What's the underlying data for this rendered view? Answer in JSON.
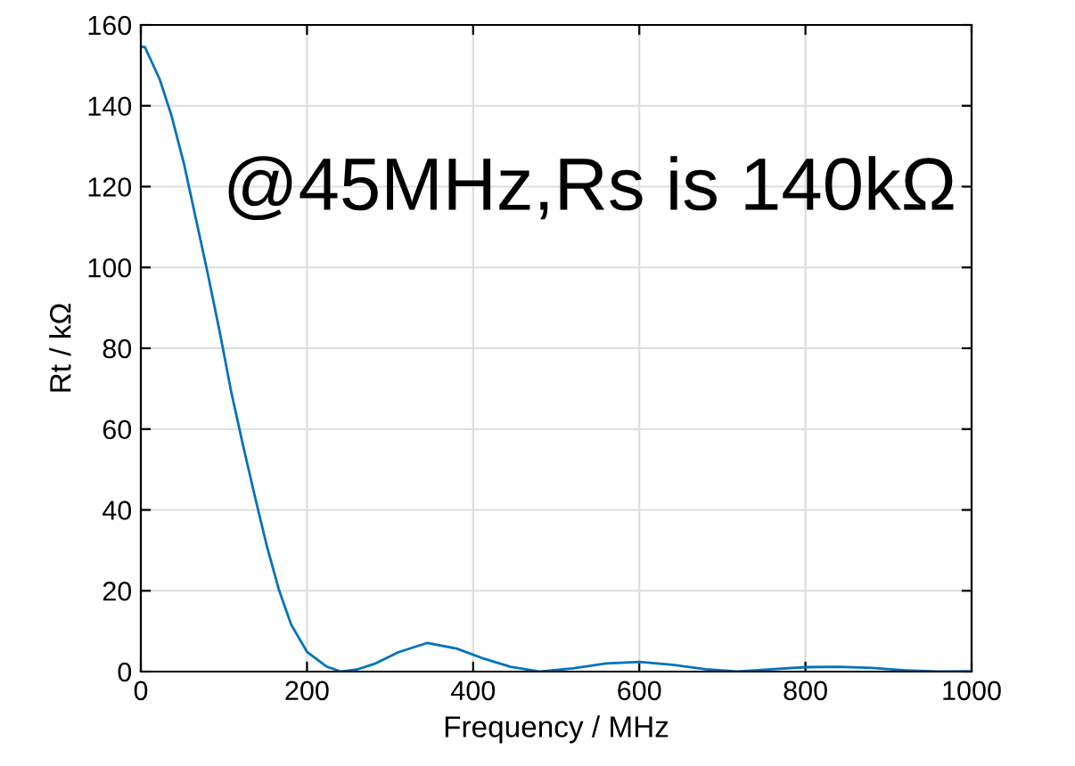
{
  "chart_data": {
    "type": "line",
    "xlabel": "Frequency / MHz",
    "ylabel": "Rt / kΩ",
    "x": [
      0,
      5,
      23,
      37,
      52,
      66,
      80,
      95,
      109,
      123,
      138,
      152,
      166,
      181,
      200,
      224,
      241,
      260,
      281,
      310,
      345,
      380,
      410,
      445,
      481,
      520,
      560,
      600,
      640,
      680,
      718,
      760,
      800,
      840,
      880,
      920,
      960,
      1000
    ],
    "series": [
      {
        "color": "#0072bd",
        "values": [
          154.6,
          154.5,
          146.4,
          137.5,
          125.6,
          112.3,
          99,
          84,
          69,
          56,
          42.7,
          30.8,
          20.4,
          11.6,
          4.9,
          1.2,
          0,
          0.5,
          1.9,
          4.8,
          7.1,
          5.7,
          3.4,
          1.2,
          0,
          0.8,
          2,
          2.4,
          1.7,
          0.6,
          0,
          0.6,
          1.1,
          1.2,
          0.9,
          0.3,
          0,
          0.1
        ]
      }
    ],
    "xlim": [
      0,
      1000
    ],
    "xticks": [
      0,
      200,
      400,
      600,
      800,
      1000
    ],
    "ylim": [
      0,
      160
    ],
    "yticks": [
      0,
      20,
      40,
      60,
      80,
      100,
      120,
      140,
      160
    ],
    "grid": true,
    "marker": "none",
    "line_style": "solid",
    "annotations": [
      "@45MHz,Rs is 140kΩ"
    ]
  }
}
